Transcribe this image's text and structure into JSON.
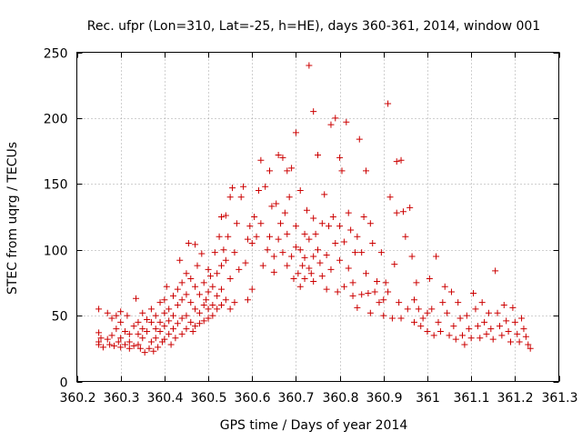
{
  "chart_data": {
    "type": "scatter",
    "title": "Rec. ufpr (Lon=310, Lat=-25, h=HE), days 360-361, 2014, window 001",
    "xlabel": "GPS time / Days of year 2014",
    "ylabel": "STEC from uqrg / TECUs",
    "xlim": [
      360.2,
      361.3
    ],
    "ylim": [
      0,
      250
    ],
    "x_ticks": [
      360.2,
      360.3,
      360.4,
      360.5,
      360.6,
      360.7,
      360.8,
      360.9,
      361,
      361.1,
      361.2,
      361.3
    ],
    "x_tick_labels": [
      "360.2",
      "360.3",
      "360.4",
      "360.5",
      "360.6",
      "360.7",
      "360.8",
      "360.9",
      "361",
      "361.1",
      "361.2",
      "361.3"
    ],
    "y_ticks": [
      0,
      50,
      100,
      150,
      200,
      250
    ],
    "y_tick_labels": [
      "0",
      "50",
      "100",
      "150",
      "200",
      "250"
    ],
    "grid": true,
    "marker": "+",
    "marker_color": "#cc0000",
    "series": [
      {
        "name": "STEC",
        "points": [
          [
            360.25,
            55
          ],
          [
            360.25,
            37
          ],
          [
            360.25,
            30
          ],
          [
            360.25,
            28
          ],
          [
            360.255,
            33
          ],
          [
            360.26,
            26
          ],
          [
            360.27,
            52
          ],
          [
            360.27,
            32
          ],
          [
            360.275,
            28
          ],
          [
            360.28,
            48
          ],
          [
            360.28,
            35
          ],
          [
            360.285,
            27
          ],
          [
            360.29,
            50
          ],
          [
            360.29,
            40
          ],
          [
            360.295,
            30
          ],
          [
            360.3,
            53
          ],
          [
            360.3,
            45
          ],
          [
            360.3,
            33
          ],
          [
            360.3,
            26
          ],
          [
            360.31,
            38
          ],
          [
            360.31,
            28
          ],
          [
            360.315,
            50
          ],
          [
            360.32,
            36
          ],
          [
            360.32,
            30
          ],
          [
            360.32,
            25
          ],
          [
            360.33,
            42
          ],
          [
            360.33,
            27
          ],
          [
            360.335,
            63
          ],
          [
            360.34,
            45
          ],
          [
            360.34,
            36
          ],
          [
            360.34,
            28
          ],
          [
            360.345,
            25
          ],
          [
            360.35,
            52
          ],
          [
            360.35,
            40
          ],
          [
            360.35,
            33
          ],
          [
            360.355,
            22
          ],
          [
            360.36,
            47
          ],
          [
            360.36,
            38
          ],
          [
            360.365,
            25
          ],
          [
            360.37,
            55
          ],
          [
            360.37,
            45
          ],
          [
            360.37,
            30
          ],
          [
            360.375,
            23
          ],
          [
            360.38,
            50
          ],
          [
            360.38,
            40
          ],
          [
            360.38,
            33
          ],
          [
            360.385,
            26
          ],
          [
            360.39,
            60
          ],
          [
            360.39,
            45
          ],
          [
            360.39,
            38
          ],
          [
            360.395,
            30
          ],
          [
            360.4,
            62
          ],
          [
            360.4,
            52
          ],
          [
            360.4,
            42
          ],
          [
            360.4,
            32
          ],
          [
            360.405,
            72
          ],
          [
            360.41,
            55
          ],
          [
            360.41,
            46
          ],
          [
            360.41,
            36
          ],
          [
            360.415,
            28
          ],
          [
            360.42,
            65
          ],
          [
            360.42,
            50
          ],
          [
            360.42,
            40
          ],
          [
            360.425,
            33
          ],
          [
            360.43,
            70
          ],
          [
            360.43,
            58
          ],
          [
            360.43,
            44
          ],
          [
            360.435,
            92
          ],
          [
            360.44,
            75
          ],
          [
            360.44,
            62
          ],
          [
            360.44,
            48
          ],
          [
            360.44,
            36
          ],
          [
            360.45,
            82
          ],
          [
            360.45,
            66
          ],
          [
            360.45,
            50
          ],
          [
            360.45,
            40
          ],
          [
            360.455,
            105
          ],
          [
            360.46,
            78
          ],
          [
            360.46,
            60
          ],
          [
            360.46,
            45
          ],
          [
            360.465,
            38
          ],
          [
            360.47,
            104
          ],
          [
            360.47,
            72
          ],
          [
            360.47,
            55
          ],
          [
            360.47,
            42
          ],
          [
            360.475,
            88
          ],
          [
            360.48,
            66
          ],
          [
            360.48,
            52
          ],
          [
            360.48,
            44
          ],
          [
            360.485,
            97
          ],
          [
            360.49,
            75
          ],
          [
            360.49,
            58
          ],
          [
            360.49,
            46
          ],
          [
            360.495,
            62
          ],
          [
            360.5,
            85
          ],
          [
            360.5,
            68
          ],
          [
            360.5,
            55
          ],
          [
            360.5,
            48
          ],
          [
            360.505,
            80
          ],
          [
            360.51,
            72
          ],
          [
            360.51,
            58
          ],
          [
            360.51,
            50
          ],
          [
            360.515,
            98
          ],
          [
            360.52,
            82
          ],
          [
            360.52,
            65
          ],
          [
            360.52,
            55
          ],
          [
            360.525,
            110
          ],
          [
            360.53,
            125
          ],
          [
            360.53,
            88
          ],
          [
            360.53,
            70
          ],
          [
            360.53,
            58
          ],
          [
            360.535,
            100
          ],
          [
            360.54,
            126
          ],
          [
            360.54,
            92
          ],
          [
            360.54,
            62
          ],
          [
            360.545,
            110
          ],
          [
            360.55,
            140
          ],
          [
            360.55,
            78
          ],
          [
            360.55,
            55
          ],
          [
            360.555,
            147
          ],
          [
            360.56,
            98
          ],
          [
            360.56,
            60
          ],
          [
            360.565,
            120
          ],
          [
            360.57,
            85
          ],
          [
            360.575,
            140
          ],
          [
            360.58,
            148
          ],
          [
            360.585,
            90
          ],
          [
            360.59,
            108
          ],
          [
            360.59,
            62
          ],
          [
            360.595,
            118
          ],
          [
            360.6,
            105
          ],
          [
            360.6,
            70
          ],
          [
            360.605,
            125
          ],
          [
            360.61,
            110
          ],
          [
            360.615,
            145
          ],
          [
            360.62,
            168
          ],
          [
            360.62,
            120
          ],
          [
            360.625,
            88
          ],
          [
            360.63,
            148
          ],
          [
            360.635,
            100
          ],
          [
            360.64,
            160
          ],
          [
            360.64,
            110
          ],
          [
            360.645,
            133
          ],
          [
            360.65,
            95
          ],
          [
            360.65,
            83
          ],
          [
            360.655,
            135
          ],
          [
            360.66,
            172
          ],
          [
            360.66,
            108
          ],
          [
            360.665,
            120
          ],
          [
            360.67,
            170
          ],
          [
            360.67,
            98
          ],
          [
            360.675,
            128
          ],
          [
            360.68,
            160
          ],
          [
            360.68,
            112
          ],
          [
            360.68,
            88
          ],
          [
            360.685,
            140
          ],
          [
            360.69,
            162
          ],
          [
            360.69,
            95
          ],
          [
            360.695,
            78
          ],
          [
            360.7,
            189
          ],
          [
            360.7,
            118
          ],
          [
            360.7,
            102
          ],
          [
            360.705,
            82
          ],
          [
            360.71,
            145
          ],
          [
            360.71,
            100
          ],
          [
            360.71,
            72
          ],
          [
            360.715,
            88
          ],
          [
            360.72,
            112
          ],
          [
            360.72,
            94
          ],
          [
            360.72,
            78
          ],
          [
            360.725,
            130
          ],
          [
            360.73,
            240
          ],
          [
            360.73,
            108
          ],
          [
            360.73,
            86
          ],
          [
            360.735,
            82
          ],
          [
            360.74,
            205
          ],
          [
            360.74,
            124
          ],
          [
            360.74,
            95
          ],
          [
            360.74,
            76
          ],
          [
            360.745,
            112
          ],
          [
            360.75,
            172
          ],
          [
            360.75,
            100
          ],
          [
            360.755,
            90
          ],
          [
            360.76,
            120
          ],
          [
            360.76,
            80
          ],
          [
            360.765,
            142
          ],
          [
            360.77,
            96
          ],
          [
            360.77,
            70
          ],
          [
            360.775,
            118
          ],
          [
            360.78,
            195
          ],
          [
            360.78,
            85
          ],
          [
            360.785,
            125
          ],
          [
            360.79,
            200
          ],
          [
            360.79,
            105
          ],
          [
            360.795,
            68
          ],
          [
            360.8,
            170
          ],
          [
            360.8,
            118
          ],
          [
            360.8,
            92
          ],
          [
            360.805,
            160
          ],
          [
            360.81,
            106
          ],
          [
            360.81,
            72
          ],
          [
            360.815,
            197
          ],
          [
            360.82,
            128
          ],
          [
            360.82,
            86
          ],
          [
            360.825,
            115
          ],
          [
            360.83,
            75
          ],
          [
            360.83,
            65
          ],
          [
            360.835,
            98
          ],
          [
            360.84,
            110
          ],
          [
            360.84,
            56
          ],
          [
            360.845,
            184
          ],
          [
            360.85,
            98
          ],
          [
            360.85,
            66
          ],
          [
            360.855,
            125
          ],
          [
            360.86,
            160
          ],
          [
            360.86,
            82
          ],
          [
            360.865,
            67
          ],
          [
            360.87,
            120
          ],
          [
            360.87,
            52
          ],
          [
            360.875,
            105
          ],
          [
            360.88,
            68
          ],
          [
            360.885,
            76
          ],
          [
            360.89,
            60
          ],
          [
            360.895,
            98
          ],
          [
            360.9,
            62
          ],
          [
            360.9,
            50
          ],
          [
            360.905,
            75
          ],
          [
            360.91,
            211
          ],
          [
            360.91,
            68
          ],
          [
            360.915,
            140
          ],
          [
            360.92,
            48
          ],
          [
            360.925,
            89
          ],
          [
            360.93,
            167
          ],
          [
            360.93,
            128
          ],
          [
            360.935,
            60
          ],
          [
            360.94,
            168
          ],
          [
            360.94,
            48
          ],
          [
            360.945,
            129
          ],
          [
            360.95,
            110
          ],
          [
            360.955,
            55
          ],
          [
            360.96,
            132
          ],
          [
            360.965,
            95
          ],
          [
            360.97,
            62
          ],
          [
            360.97,
            45
          ],
          [
            360.975,
            75
          ],
          [
            360.98,
            55
          ],
          [
            360.985,
            42
          ],
          [
            360.99,
            48
          ],
          [
            361.0,
            52
          ],
          [
            361.0,
            38
          ],
          [
            361.005,
            78
          ],
          [
            361.01,
            55
          ],
          [
            361.015,
            35
          ],
          [
            361.02,
            95
          ],
          [
            361.025,
            45
          ],
          [
            361.03,
            38
          ],
          [
            361.035,
            60
          ],
          [
            361.04,
            72
          ],
          [
            361.045,
            52
          ],
          [
            361.05,
            35
          ],
          [
            361.055,
            68
          ],
          [
            361.06,
            42
          ],
          [
            361.065,
            32
          ],
          [
            361.07,
            60
          ],
          [
            361.075,
            48
          ],
          [
            361.08,
            35
          ],
          [
            361.085,
            28
          ],
          [
            361.09,
            50
          ],
          [
            361.095,
            40
          ],
          [
            361.1,
            33
          ],
          [
            361.105,
            67
          ],
          [
            361.11,
            55
          ],
          [
            361.115,
            42
          ],
          [
            361.12,
            33
          ],
          [
            361.125,
            60
          ],
          [
            361.13,
            45
          ],
          [
            361.135,
            36
          ],
          [
            361.14,
            52
          ],
          [
            361.145,
            40
          ],
          [
            361.15,
            32
          ],
          [
            361.155,
            84
          ],
          [
            361.16,
            52
          ],
          [
            361.165,
            42
          ],
          [
            361.17,
            35
          ],
          [
            361.175,
            58
          ],
          [
            361.18,
            46
          ],
          [
            361.185,
            38
          ],
          [
            361.19,
            30
          ],
          [
            361.195,
            56
          ],
          [
            361.2,
            45
          ],
          [
            361.205,
            36
          ],
          [
            361.21,
            30
          ],
          [
            361.215,
            48
          ],
          [
            361.22,
            40
          ],
          [
            361.225,
            34
          ],
          [
            361.23,
            28
          ],
          [
            361.235,
            25
          ]
        ]
      }
    ]
  }
}
